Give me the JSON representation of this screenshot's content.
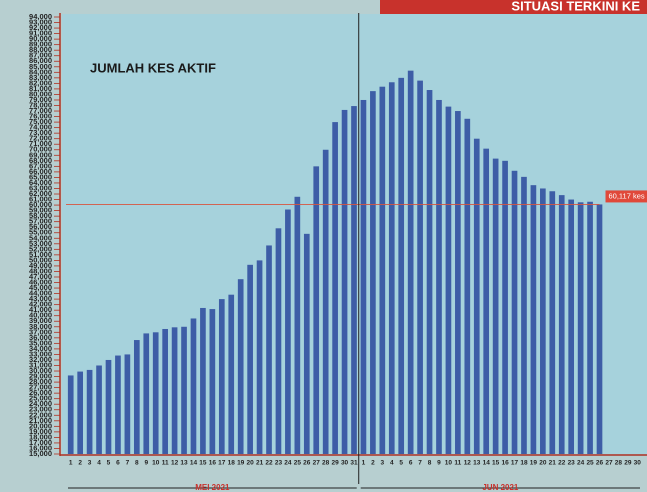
{
  "chart_data": {
    "type": "bar",
    "header": "SITUASI TERKINI KE",
    "title": "JUMLAH KES AKTIF",
    "categories": [
      "1",
      "2",
      "3",
      "4",
      "5",
      "6",
      "7",
      "8",
      "9",
      "10",
      "11",
      "12",
      "13",
      "14",
      "15",
      "16",
      "17",
      "18",
      "19",
      "20",
      "21",
      "22",
      "23",
      "24",
      "25",
      "26",
      "27",
      "28",
      "29",
      "30",
      "31",
      "1",
      "2",
      "3",
      "4",
      "5",
      "6",
      "7",
      "8",
      "9",
      "10",
      "11",
      "12",
      "13",
      "14",
      "15",
      "16",
      "17",
      "18",
      "19",
      "20",
      "21",
      "22",
      "23",
      "24",
      "25",
      "26",
      "27",
      "28",
      "29",
      "30"
    ],
    "groups": [
      {
        "label": "MEI 2021",
        "count": 31
      },
      {
        "label": "JUN 2021",
        "count": 30
      }
    ],
    "values": [
      29200,
      29900,
      30200,
      31000,
      32000,
      32800,
      33000,
      35600,
      36800,
      37000,
      37600,
      37900,
      38000,
      39500,
      41400,
      41200,
      43000,
      43800,
      46600,
      49200,
      50000,
      52700,
      55800,
      59200,
      61500,
      54800,
      67000,
      70000,
      75000,
      77200,
      77900,
      79000,
      80600,
      81400,
      82200,
      83000,
      84300,
      82500,
      80800,
      79000,
      77800,
      77000,
      75600,
      72000,
      70200,
      68400,
      68000,
      66200,
      65100,
      63600,
      63000,
      62500,
      61800,
      61000,
      60500,
      60600,
      60117,
      null,
      null,
      null,
      null
    ],
    "value_labels": {
      "56": "60,117 kes"
    },
    "color": "#3d5da6",
    "ylim": [
      15000,
      94000
    ],
    "yticks": [
      {
        "value": 15000,
        "label": "15,000"
      },
      {
        "value": 16000,
        "label": "16,000"
      },
      {
        "value": 17000,
        "label": "17,000"
      },
      {
        "value": 18000,
        "label": "18,000"
      },
      {
        "value": 19000,
        "label": "19,000"
      },
      {
        "value": 20000,
        "label": "20,000"
      },
      {
        "value": 21000,
        "label": "21,000"
      },
      {
        "value": 22000,
        "label": "22,000"
      },
      {
        "value": 23000,
        "label": "23,000"
      },
      {
        "value": 24000,
        "label": "24,000"
      },
      {
        "value": 25000,
        "label": "25,000"
      },
      {
        "value": 26000,
        "label": "26,000"
      },
      {
        "value": 27000,
        "label": "27,000"
      },
      {
        "value": 28000,
        "label": "28,000"
      },
      {
        "value": 29000,
        "label": "29,000"
      },
      {
        "value": 30000,
        "label": "30,000"
      },
      {
        "value": 31000,
        "label": "31,000"
      },
      {
        "value": 32000,
        "label": "32,000"
      },
      {
        "value": 33000,
        "label": "33,000"
      },
      {
        "value": 34000,
        "label": "34,000"
      },
      {
        "value": 35000,
        "label": "35,000"
      },
      {
        "value": 36000,
        "label": "36,000"
      },
      {
        "value": 37000,
        "label": "37,000"
      },
      {
        "value": 38000,
        "label": "38,000"
      },
      {
        "value": 39000,
        "label": "39,000"
      },
      {
        "value": 40000,
        "label": "40,000"
      },
      {
        "value": 41000,
        "label": "41,000"
      },
      {
        "value": 42000,
        "label": "42,000"
      },
      {
        "value": 43000,
        "label": "43,000"
      },
      {
        "value": 44000,
        "label": "44,000"
      },
      {
        "value": 45000,
        "label": "45,000"
      },
      {
        "value": 46000,
        "label": "46,000"
      },
      {
        "value": 47000,
        "label": "47,000"
      },
      {
        "value": 48000,
        "label": "48,000"
      },
      {
        "value": 49000,
        "label": "49,000"
      },
      {
        "value": 50000,
        "label": "50,000"
      },
      {
        "value": 51000,
        "label": "51,000"
      },
      {
        "value": 52000,
        "label": "52,000"
      },
      {
        "value": 53000,
        "label": "53,000"
      },
      {
        "value": 54000,
        "label": "54,000"
      },
      {
        "value": 55000,
        "label": "55,000"
      },
      {
        "value": 56000,
        "label": "56,000"
      },
      {
        "value": 57000,
        "label": "57,000"
      },
      {
        "value": 58000,
        "label": "58,000"
      },
      {
        "value": 59000,
        "label": "59,000"
      },
      {
        "value": 60000,
        "label": "60,000"
      },
      {
        "value": 61000,
        "label": "61,000"
      },
      {
        "value": 62000,
        "label": "62,000"
      },
      {
        "value": 63000,
        "label": "63,000"
      },
      {
        "value": 64000,
        "label": "64,000"
      },
      {
        "value": 65000,
        "label": "65,000"
      },
      {
        "value": 66000,
        "label": "66,000"
      },
      {
        "value": 67000,
        "label": "67,000"
      },
      {
        "value": 68000,
        "label": "68,000"
      },
      {
        "value": 69000,
        "label": "69,000"
      },
      {
        "value": 70000,
        "label": "70,000"
      },
      {
        "value": 71000,
        "label": "71,000"
      },
      {
        "value": 72000,
        "label": "72,000"
      },
      {
        "value": 73000,
        "label": "73,000"
      },
      {
        "value": 74000,
        "label": "74,000"
      },
      {
        "value": 75000,
        "label": "75,000"
      },
      {
        "value": 76000,
        "label": "76,000"
      },
      {
        "value": 77000,
        "label": "77,000"
      },
      {
        "value": 78000,
        "label": "78,000"
      },
      {
        "value": 79000,
        "label": "79,000"
      },
      {
        "value": 80000,
        "label": "80,000"
      },
      {
        "value": 81000,
        "label": "81,000"
      },
      {
        "value": 82000,
        "label": "82,000"
      },
      {
        "value": 83000,
        "label": "83,000"
      },
      {
        "value": 84000,
        "label": "84,000"
      },
      {
        "value": 85000,
        "label": "85,000"
      },
      {
        "value": 86000,
        "label": "86,000"
      },
      {
        "value": 87000,
        "label": "87,000"
      },
      {
        "value": 88000,
        "label": "88,000"
      },
      {
        "value": 89000,
        "label": "89,000"
      },
      {
        "value": 90000,
        "label": "90,000"
      },
      {
        "value": 91000,
        "label": "91,000"
      },
      {
        "value": 92000,
        "label": "92,000"
      },
      {
        "value": 93000,
        "label": "93,000"
      },
      {
        "value": 94000,
        "label": "94,000"
      }
    ],
    "grid": false
  }
}
